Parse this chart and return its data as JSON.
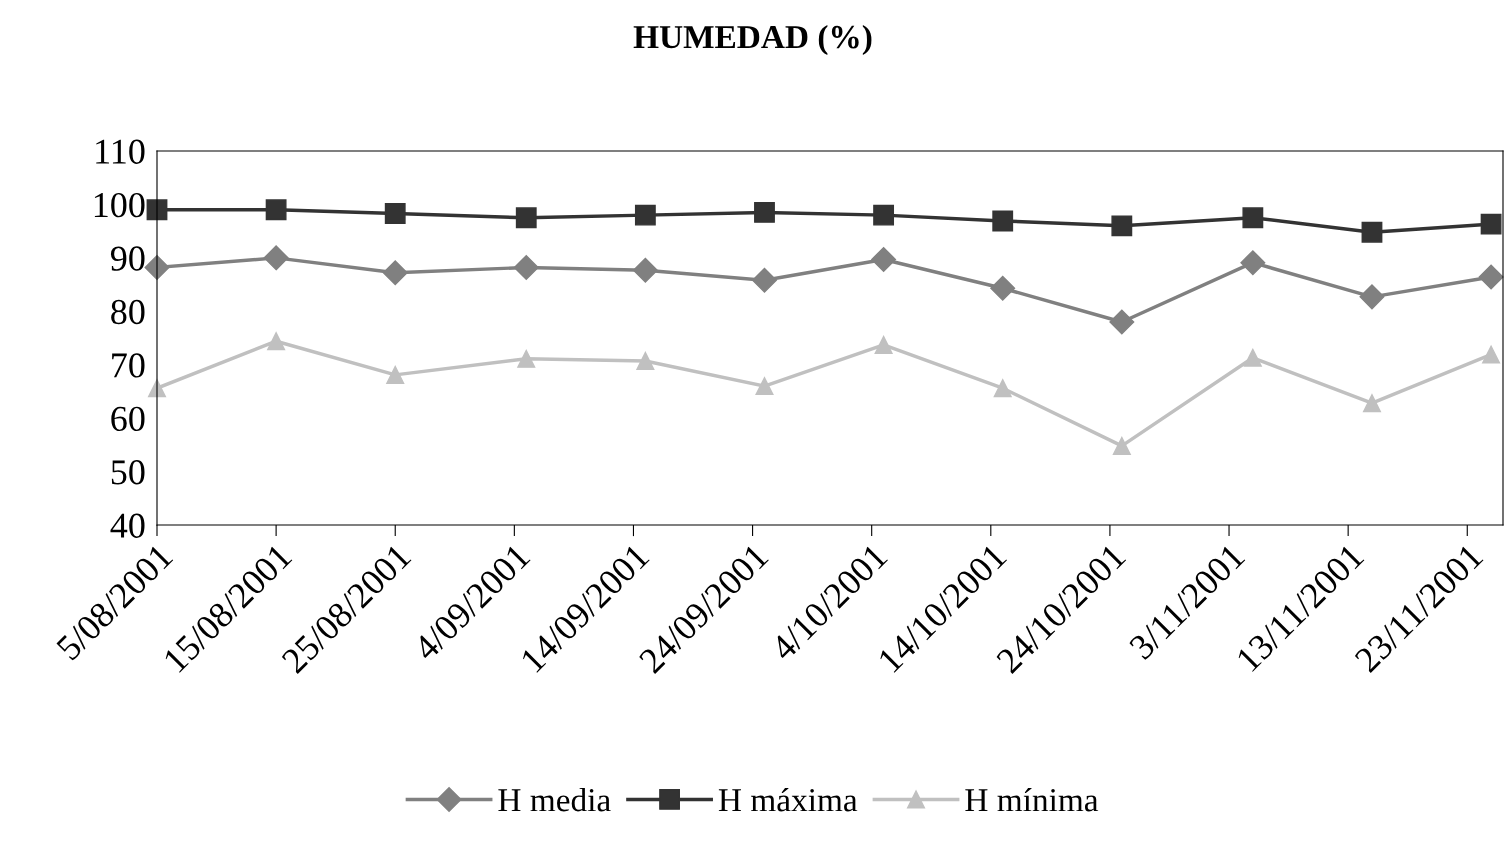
{
  "chart_data": {
    "type": "line",
    "title": "HUMEDAD (%)",
    "x": [
      "2001-08-05",
      "2001-08-15",
      "2001-08-25",
      "2001-09-05",
      "2001-09-15",
      "2001-09-25",
      "2001-10-05",
      "2001-10-15",
      "2001-10-25",
      "2001-11-05",
      "2001-11-15",
      "2001-11-25"
    ],
    "series": [
      {
        "name": "H media",
        "color": "#808080",
        "marker": "diamond",
        "values": [
          88.2,
          90,
          87.2,
          88.2,
          87.7,
          85.8,
          89.7,
          84.3,
          78,
          89.1,
          82.7,
          86.4
        ]
      },
      {
        "name": "H máxima",
        "color": "#333333",
        "marker": "square",
        "values": [
          99,
          99,
          98.3,
          97.5,
          98,
          98.5,
          98,
          96.9,
          96,
          97.5,
          94.8,
          96.3
        ]
      },
      {
        "name": "H mínima",
        "color": "#c0c0c0",
        "marker": "triangle",
        "values": [
          65.6,
          74.4,
          68.1,
          71.1,
          70.7,
          66,
          73.7,
          65.6,
          54.8,
          71.3,
          62.8,
          71.9
        ]
      }
    ],
    "xlim": [
      "2001-08-05",
      "2001-11-26"
    ],
    "xticks": [
      {
        "value": "2001-08-05",
        "label": "5/08/2001"
      },
      {
        "value": "2001-08-15",
        "label": "15/08/2001"
      },
      {
        "value": "2001-08-25",
        "label": "25/08/2001"
      },
      {
        "value": "2001-09-04",
        "label": "4/09/2001"
      },
      {
        "value": "2001-09-14",
        "label": "14/09/2001"
      },
      {
        "value": "2001-09-24",
        "label": "24/09/2001"
      },
      {
        "value": "2001-10-04",
        "label": "4/10/2001"
      },
      {
        "value": "2001-10-14",
        "label": "14/10/2001"
      },
      {
        "value": "2001-10-24",
        "label": "24/10/2001"
      },
      {
        "value": "2001-11-03",
        "label": "3/11/2001"
      },
      {
        "value": "2001-11-13",
        "label": "13/11/2001"
      },
      {
        "value": "2001-11-23",
        "label": "23/11/2001"
      }
    ],
    "ylim": [
      40,
      110
    ],
    "yticks": [
      40,
      50,
      60,
      70,
      80,
      90,
      100,
      110
    ],
    "grid": false,
    "legend": "bottom",
    "line_style": "solid"
  }
}
